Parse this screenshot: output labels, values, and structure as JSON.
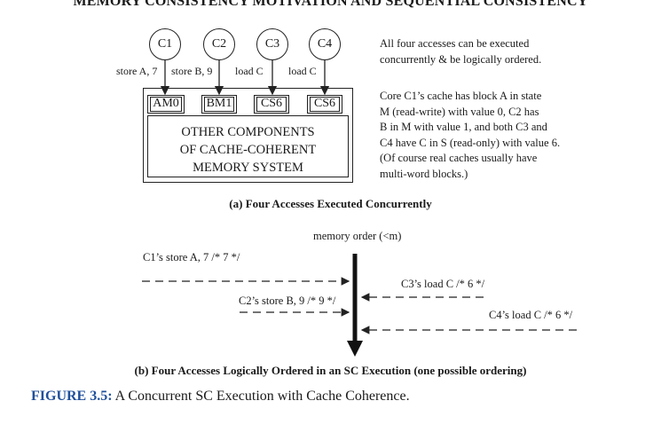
{
  "header": "MEMORY CONSISTENCY MOTIVATION AND SEQUENTIAL CONSISTENCY",
  "panel_a": {
    "cores": [
      {
        "label": "C1",
        "access": "store A, 7"
      },
      {
        "label": "C2",
        "access": "store B, 9"
      },
      {
        "label": "C3",
        "access": "load C"
      },
      {
        "label": "C4",
        "access": "load C"
      }
    ],
    "caches": [
      "AM0",
      "BM1",
      "CS6",
      "CS6"
    ],
    "memory_lines": [
      "OTHER COMPONENTS",
      "OF CACHE-COHERENT",
      "MEMORY SYSTEM"
    ],
    "note_top": [
      "All four accesses can be executed",
      "concurrently & be logically ordered."
    ],
    "note_bottom": [
      "Core C1’s cache has block A in state",
      "M (read-write) with value 0, C2 has",
      "B in M with value 1, and both C3 and",
      "C4 have C in S (read-only) with value 6.",
      "(Of course real caches usually have",
      "multi-word blocks.)"
    ],
    "caption": "(a) Four Accesses Executed Concurrently"
  },
  "panel_b": {
    "axis_label": "memory order (<m)",
    "ops": [
      {
        "label": "C1’s store A, 7 /* 7 */"
      },
      {
        "label": "C3’s load C /* 6 */"
      },
      {
        "label": "C2’s store B, 9 /* 9 */"
      },
      {
        "label": "C4’s load C /* 6 */"
      }
    ],
    "caption": "(b) Four Accesses Logically Ordered in an SC Execution (one possible ordering)"
  },
  "figure": {
    "number": "FIGURE 3.5:",
    "caption": " A Concurrent SC Execution with Cache Coherence."
  }
}
